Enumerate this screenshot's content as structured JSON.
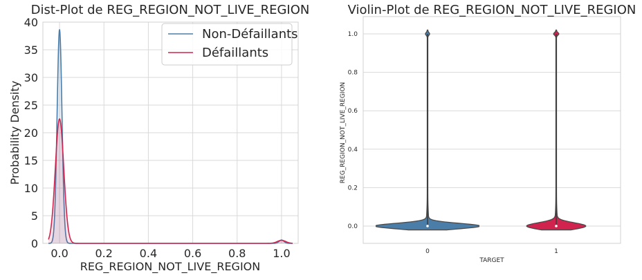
{
  "chart_data": [
    {
      "type": "line",
      "title": "Dist-Plot de REG_REGION_NOT_LIVE_REGION",
      "xlabel": "REG_REGION_NOT_LIVE_REGION",
      "ylabel": "Probability Density",
      "xlim": [
        -0.075,
        1.075
      ],
      "ylim": [
        0,
        40
      ],
      "xticks": [
        "0.0",
        "0.2",
        "0.4",
        "0.6",
        "0.8",
        "1.0"
      ],
      "xtick_values": [
        0,
        0.2,
        0.4,
        0.6,
        0.8,
        1.0
      ],
      "yticks": [
        "0",
        "5",
        "10",
        "15",
        "20",
        "25",
        "30",
        "35",
        "40"
      ],
      "ytick_values": [
        0,
        5,
        10,
        15,
        20,
        25,
        30,
        35,
        40
      ],
      "grid": true,
      "legend_position": "top-right",
      "series": [
        {
          "name": "Non-Défaillants",
          "color": "#4a7ea9",
          "peaks": [
            {
              "x": 0.0,
              "height": 38.7,
              "width": 0.011
            },
            {
              "x": 1.0,
              "height": 0.6,
              "width": 0.011
            }
          ]
        },
        {
          "name": "Défaillants",
          "color": "#d0244f",
          "peaks": [
            {
              "x": 0.0,
              "height": 22.5,
              "width": 0.019
            },
            {
              "x": 1.0,
              "height": 0.55,
              "width": 0.019
            }
          ]
        }
      ]
    },
    {
      "type": "violin",
      "title": "Violin-Plot de REG_REGION_NOT_LIVE_REGION",
      "xlabel": "TARGET",
      "ylabel": "REG_REGION_NOT_LIVE_REGION",
      "categories": [
        "0",
        "1"
      ],
      "ylim": [
        -0.09,
        1.09
      ],
      "yticks": [
        "0.0",
        "0.2",
        "0.4",
        "0.6",
        "0.8",
        "1.0"
      ],
      "ytick_values": [
        0,
        0.2,
        0.4,
        0.6,
        0.8,
        1.0
      ],
      "grid": true,
      "series": [
        {
          "category": "0",
          "color": "#4a7ea9",
          "median": 0.0,
          "q1": 0.0,
          "q3": 0.0,
          "min": 0.0,
          "max": 1.0,
          "base_width": 1.0,
          "top_width": 0.035
        },
        {
          "category": "1",
          "color": "#d0244f",
          "median": 0.0,
          "q1": 0.0,
          "q3": 0.0,
          "min": 0.0,
          "max": 1.0,
          "base_width": 0.55,
          "top_width": 0.045
        }
      ]
    }
  ]
}
